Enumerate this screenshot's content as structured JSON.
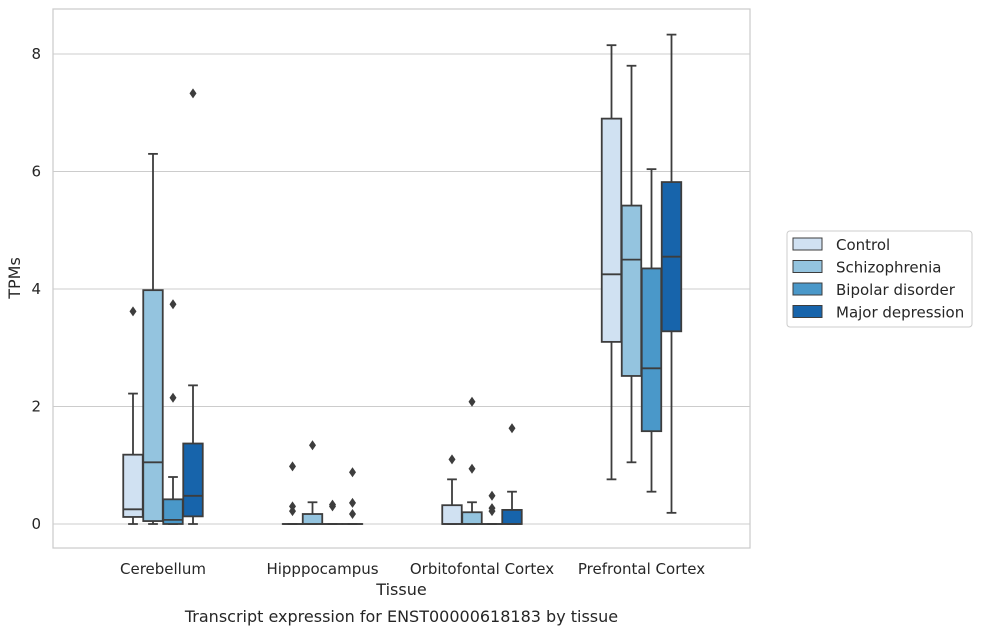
{
  "caption": "Transcript expression for ENST00000618183 by tissue",
  "chart_data": {
    "type": "box",
    "xlabel": "Tissue",
    "ylabel": "TPMs",
    "ylim": [
      -0.4,
      8.75
    ],
    "yticks": [
      0,
      2,
      4,
      6,
      8
    ],
    "grid": "horizontal",
    "legend_position": "right-outside",
    "categories": [
      "Cerebellum",
      "Hipppocampus",
      "Orbitofontal Cortex",
      "Prefrontal Cortex"
    ],
    "series": [
      {
        "name": "Control",
        "color": "#d0e1f2",
        "boxes": [
          {
            "whislo": 0.0,
            "q1": 0.12,
            "med": 0.25,
            "q3": 1.18,
            "whishi": 2.22,
            "fliers": [
              3.62
            ]
          },
          {
            "whislo": 0.0,
            "q1": 0.0,
            "med": 0.0,
            "q3": 0.0,
            "whishi": 0.0,
            "fliers": [
              0.98,
              0.3,
              0.22
            ]
          },
          {
            "whislo": 0.0,
            "q1": 0.0,
            "med": 0.0,
            "q3": 0.32,
            "whishi": 0.76,
            "fliers": [
              1.1
            ]
          },
          {
            "whislo": 0.76,
            "q1": 3.1,
            "med": 4.25,
            "q3": 6.9,
            "whishi": 8.15,
            "fliers": []
          }
        ]
      },
      {
        "name": "Schizophrenia",
        "color": "#94c4df",
        "boxes": [
          {
            "whislo": 0.0,
            "q1": 0.05,
            "med": 1.05,
            "q3": 3.98,
            "whishi": 6.3,
            "fliers": []
          },
          {
            "whislo": 0.0,
            "q1": 0.0,
            "med": 0.0,
            "q3": 0.17,
            "whishi": 0.37,
            "fliers": [
              1.34
            ]
          },
          {
            "whislo": 0.0,
            "q1": 0.0,
            "med": 0.0,
            "q3": 0.2,
            "whishi": 0.37,
            "fliers": [
              2.08,
              0.94
            ]
          },
          {
            "whislo": 1.05,
            "q1": 2.52,
            "med": 4.5,
            "q3": 5.42,
            "whishi": 7.8,
            "fliers": []
          }
        ]
      },
      {
        "name": "Bipolar disorder",
        "color": "#4a98c9",
        "boxes": [
          {
            "whislo": 0.0,
            "q1": 0.0,
            "med": 0.07,
            "q3": 0.42,
            "whishi": 0.8,
            "fliers": [
              3.74,
              2.15
            ]
          },
          {
            "whislo": 0.0,
            "q1": 0.0,
            "med": 0.0,
            "q3": 0.0,
            "whishi": 0.0,
            "fliers": [
              0.33,
              0.3
            ]
          },
          {
            "whislo": 0.0,
            "q1": 0.0,
            "med": 0.0,
            "q3": 0.0,
            "whishi": 0.0,
            "fliers": [
              0.48,
              0.27,
              0.22
            ]
          },
          {
            "whislo": 0.55,
            "q1": 1.58,
            "med": 2.65,
            "q3": 4.35,
            "whishi": 6.04,
            "fliers": []
          }
        ]
      },
      {
        "name": "Major depression",
        "color": "#1764ab",
        "boxes": [
          {
            "whislo": 0.0,
            "q1": 0.13,
            "med": 0.48,
            "q3": 1.37,
            "whishi": 2.36,
            "fliers": [
              7.33
            ]
          },
          {
            "whislo": 0.0,
            "q1": 0.0,
            "med": 0.0,
            "q3": 0.0,
            "whishi": 0.0,
            "fliers": [
              0.88,
              0.36,
              0.17
            ]
          },
          {
            "whislo": 0.0,
            "q1": 0.0,
            "med": 0.0,
            "q3": 0.24,
            "whishi": 0.55,
            "fliers": [
              1.63
            ]
          },
          {
            "whislo": 0.19,
            "q1": 3.28,
            "med": 4.55,
            "q3": 5.82,
            "whishi": 8.33,
            "fliers": []
          }
        ]
      }
    ]
  }
}
